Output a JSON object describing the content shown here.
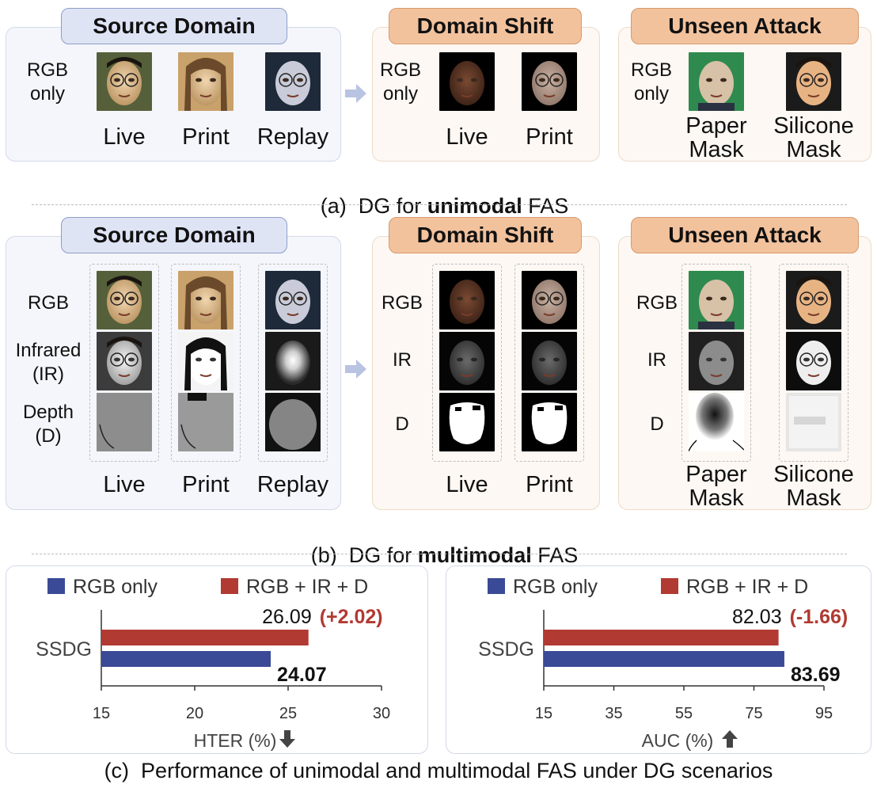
{
  "colors": {
    "src_header": "#dfe4f5",
    "tgt_header": "#f2c29d",
    "rgb_only": "#3a4a96",
    "multi": "#b13a32",
    "delta_text": "#b13a32"
  },
  "section_a": {
    "source": {
      "title": "Source Domain",
      "modality": "RGB\nonly",
      "classes": [
        "Live",
        "Print",
        "Replay"
      ]
    },
    "shift": {
      "title": "Domain Shift",
      "modality": "RGB\nonly",
      "classes": [
        "Live",
        "Print"
      ]
    },
    "attack": {
      "title": "Unseen Attack",
      "modality": "RGB\nonly",
      "classes": [
        "Paper\nMask",
        "Silicone\nMask"
      ]
    },
    "caption_prefix": "(a)  DG for ",
    "caption_bold": "unimodal",
    "caption_suffix": " FAS"
  },
  "section_b": {
    "source": {
      "title": "Source Domain",
      "modalities": [
        "RGB",
        "Infrared\n(IR)",
        "Depth\n(D)"
      ],
      "classes": [
        "Live",
        "Print",
        "Replay"
      ]
    },
    "shift": {
      "title": "Domain Shift",
      "modalities": [
        "RGB",
        "IR",
        "D"
      ],
      "classes": [
        "Live",
        "Print"
      ]
    },
    "attack": {
      "title": "Unseen Attack",
      "modalities": [
        "RGB",
        "IR",
        "D"
      ],
      "classes": [
        "Paper\nMask",
        "Silicone\nMask"
      ]
    },
    "caption_prefix": "(b)  DG for ",
    "caption_bold": "multimodal",
    "caption_suffix": " FAS"
  },
  "section_c": {
    "caption": "(c)  Performance of unimodal and multimodal FAS under DG scenarios"
  },
  "chart_data": [
    {
      "type": "bar",
      "orientation": "horizontal",
      "categories": [
        "SSDG"
      ],
      "series": [
        {
          "name": "RGB + IR + D",
          "values": [
            26.09
          ],
          "label": "26.09",
          "delta": "(+2.02)"
        },
        {
          "name": "RGB only",
          "values": [
            24.07
          ],
          "label": "24.07"
        }
      ],
      "xlabel": "HTER (%)",
      "xlabel_icon": "arrow-down-icon",
      "xlim": [
        15,
        30
      ],
      "xticks": [
        "15",
        "20",
        "25",
        "30"
      ],
      "legend": "top"
    },
    {
      "type": "bar",
      "orientation": "horizontal",
      "categories": [
        "SSDG"
      ],
      "series": [
        {
          "name": "RGB + IR + D",
          "values": [
            82.03
          ],
          "label": "82.03",
          "delta": "(-1.66)"
        },
        {
          "name": "RGB only",
          "values": [
            83.69
          ],
          "label": "83.69"
        }
      ],
      "xlabel": "AUC (%)",
      "xlabel_icon": "arrow-up-icon",
      "xlim": [
        15,
        95
      ],
      "xticks": [
        "15",
        "35",
        "55",
        "75",
        "95"
      ],
      "legend": "top"
    }
  ]
}
